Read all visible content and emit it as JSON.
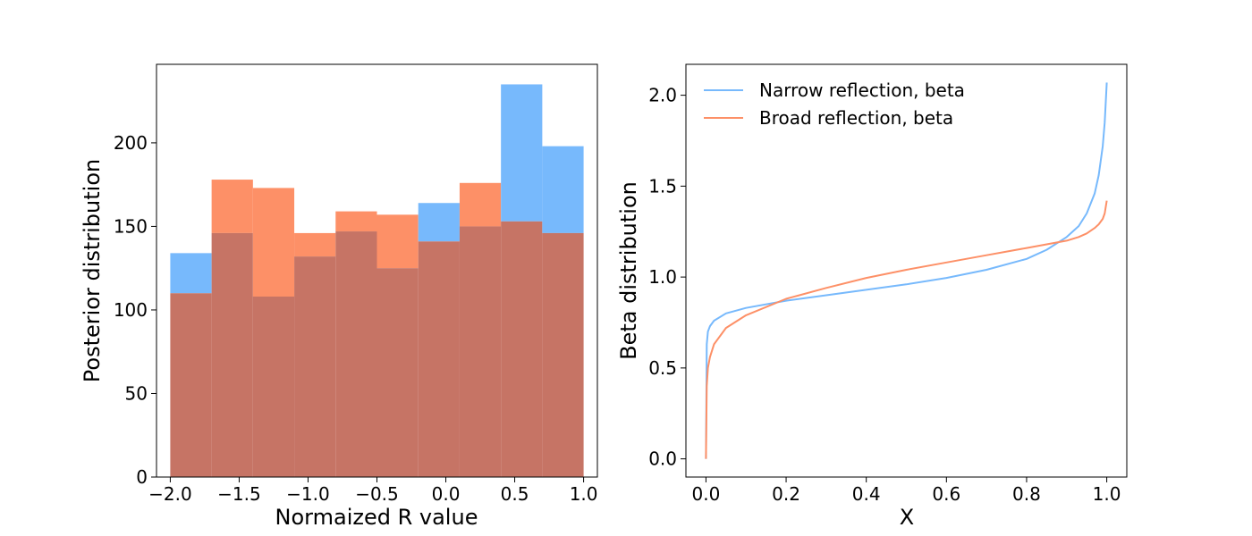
{
  "chart_data": [
    {
      "type": "histogram",
      "title": "",
      "xlabel": "Normaized R value",
      "ylabel": "Posterior distribution",
      "xlim": [
        -2.1,
        1.1
      ],
      "ylim": [
        0,
        247
      ],
      "xticks": [
        "−2.0",
        "−1.5",
        "−1.0",
        "−0.5",
        "0.0",
        "0.5",
        "1.0"
      ],
      "xtick_values": [
        -2.0,
        -1.5,
        -1.0,
        -0.5,
        0.0,
        0.5,
        1.0
      ],
      "yticks": [
        "0",
        "50",
        "100",
        "150",
        "200"
      ],
      "ytick_values": [
        0,
        50,
        100,
        150,
        200
      ],
      "bin_edges": [
        -2.0,
        -1.7,
        -1.4,
        -1.1,
        -0.8,
        -0.5,
        -0.2,
        0.1,
        0.4,
        0.7,
        1.0
      ],
      "series": [
        {
          "color": "#77b9fc",
          "values": [
            134,
            146,
            108,
            132,
            147,
            125,
            164,
            150,
            235,
            198
          ]
        },
        {
          "color": "#fd9067",
          "values": [
            110,
            178,
            173,
            146,
            159,
            157,
            141,
            176,
            153,
            146
          ]
        }
      ],
      "overlap_color": "#c67465",
      "grid": false,
      "legend": false
    },
    {
      "type": "line",
      "title": "",
      "xlabel": "X",
      "ylabel": "Beta distribution",
      "xlim": [
        -0.05,
        1.05
      ],
      "ylim": [
        -0.1,
        2.17
      ],
      "xticks": [
        "0.0",
        "0.2",
        "0.4",
        "0.6",
        "0.8",
        "1.0"
      ],
      "xtick_values": [
        0.0,
        0.2,
        0.4,
        0.6,
        0.8,
        1.0
      ],
      "yticks": [
        "0.0",
        "0.5",
        "1.0",
        "1.5",
        "2.0"
      ],
      "ytick_values": [
        0.0,
        0.5,
        1.0,
        1.5,
        2.0
      ],
      "grid": false,
      "legend_position": "top-left",
      "series": [
        {
          "name": "Narrow reflection, beta",
          "color": "#77b9fc",
          "x": [
            0.0,
            0.002,
            0.005,
            0.01,
            0.02,
            0.05,
            0.1,
            0.2,
            0.3,
            0.4,
            0.5,
            0.6,
            0.7,
            0.8,
            0.85,
            0.9,
            0.93,
            0.95,
            0.97,
            0.98,
            0.99,
            0.995,
            1.0
          ],
          "y": [
            0.0,
            0.63,
            0.7,
            0.73,
            0.76,
            0.8,
            0.83,
            0.87,
            0.9,
            0.93,
            0.96,
            0.995,
            1.04,
            1.1,
            1.15,
            1.22,
            1.28,
            1.35,
            1.46,
            1.56,
            1.72,
            1.85,
            2.07
          ]
        },
        {
          "name": "Broad reflection, beta",
          "color": "#fd9067",
          "x": [
            0.0,
            0.002,
            0.005,
            0.01,
            0.02,
            0.05,
            0.1,
            0.2,
            0.3,
            0.4,
            0.5,
            0.6,
            0.7,
            0.8,
            0.85,
            0.9,
            0.93,
            0.95,
            0.97,
            0.98,
            0.99,
            0.995,
            1.0
          ],
          "y": [
            0.0,
            0.4,
            0.5,
            0.56,
            0.63,
            0.72,
            0.79,
            0.88,
            0.94,
            0.995,
            1.04,
            1.08,
            1.12,
            1.16,
            1.18,
            1.2,
            1.22,
            1.24,
            1.27,
            1.29,
            1.32,
            1.35,
            1.42
          ]
        }
      ]
    }
  ]
}
